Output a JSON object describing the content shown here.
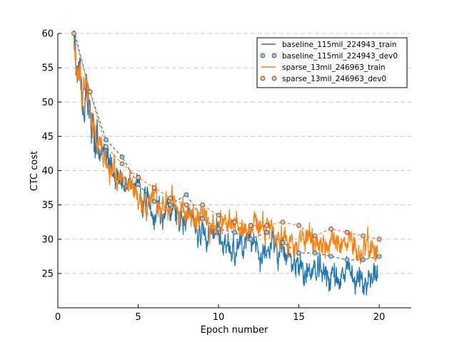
{
  "chart_data": {
    "type": "line",
    "title": "",
    "xlabel": "Epoch number",
    "ylabel": "CTC cost",
    "xlim": [
      0,
      22
    ],
    "ylim": [
      20,
      60
    ],
    "xticks": [
      0,
      5,
      10,
      15,
      20
    ],
    "yticks": [
      25,
      30,
      35,
      40,
      45,
      50,
      55,
      60
    ],
    "grid": "horizontal dashed",
    "legend_position": "top-right",
    "colors": {
      "blue": "#1f77b4",
      "orange": "#ff7f0e",
      "grid": "#c8c8c8"
    },
    "series": [
      {
        "name": "baseline_115mil_224943_train",
        "style": "line",
        "color": "#1f77b4",
        "x": [
          1.0,
          1.2,
          1.5,
          1.8,
          2.0,
          2.3,
          2.6,
          3.0,
          3.3,
          3.6,
          4.0,
          4.5,
          5.0,
          5.5,
          6.0,
          6.5,
          7.0,
          7.5,
          8.0,
          8.5,
          9.0,
          9.5,
          10.0,
          10.5,
          11.0,
          11.5,
          12.0,
          12.5,
          13.0,
          13.5,
          14.0,
          14.5,
          15.0,
          15.5,
          16.0,
          16.5,
          17.0,
          17.5,
          18.0,
          18.5,
          19.0,
          19.5,
          19.9
        ],
        "values": [
          60.0,
          54.0,
          52.0,
          49.5,
          47.0,
          44.5,
          43.0,
          42.0,
          40.0,
          39.5,
          39.0,
          37.5,
          36.5,
          35.5,
          35.0,
          34.0,
          34.0,
          33.5,
          32.5,
          32.0,
          31.5,
          31.0,
          30.0,
          29.5,
          29.0,
          28.5,
          28.5,
          28.5,
          29.0,
          28.0,
          27.5,
          27.0,
          26.5,
          25.5,
          25.0,
          25.0,
          25.0,
          24.5,
          24.5,
          24.0,
          24.0,
          24.0,
          25.5
        ]
      },
      {
        "name": "baseline_115mil_224943_dev0",
        "style": "dashed-markers",
        "color": "#1f77b4",
        "x": [
          1,
          2,
          3,
          4,
          5,
          6,
          7,
          8,
          9,
          10,
          11,
          12,
          13,
          14,
          15,
          16,
          17,
          18,
          19,
          20
        ],
        "values": [
          60.5,
          51.5,
          44.5,
          42.0,
          38.0,
          35.5,
          35.0,
          36.5,
          33.0,
          31.5,
          31.0,
          30.0,
          31.0,
          29.5,
          28.0,
          28.0,
          27.5,
          27.0,
          27.0,
          27.5
        ]
      },
      {
        "name": "sparse_13mil_246963_train",
        "style": "line",
        "color": "#ff7f0e",
        "x": [
          1.0,
          1.2,
          1.5,
          1.8,
          2.0,
          2.3,
          2.6,
          3.0,
          3.3,
          3.6,
          4.0,
          4.5,
          5.0,
          5.5,
          6.0,
          6.5,
          7.0,
          7.5,
          8.0,
          8.5,
          9.0,
          9.5,
          10.0,
          10.5,
          11.0,
          11.5,
          12.0,
          12.5,
          13.0,
          13.5,
          14.0,
          14.5,
          15.0,
          15.5,
          16.0,
          16.5,
          17.0,
          17.5,
          18.0,
          18.5,
          19.0,
          19.5,
          19.9
        ],
        "values": [
          60.0,
          55.0,
          52.0,
          50.0,
          48.5,
          45.0,
          43.5,
          41.5,
          40.0,
          39.5,
          39.0,
          38.0,
          37.0,
          36.0,
          36.0,
          35.0,
          35.0,
          34.0,
          33.5,
          33.0,
          33.0,
          32.5,
          32.5,
          32.0,
          31.5,
          31.5,
          31.5,
          31.0,
          31.5,
          31.0,
          30.5,
          30.0,
          30.0,
          29.5,
          29.5,
          29.5,
          29.5,
          29.0,
          29.0,
          28.5,
          28.0,
          28.0,
          30.0
        ]
      },
      {
        "name": "sparse_13mil_246963_dev0",
        "style": "dashed-markers",
        "color": "#ff7f0e",
        "x": [
          1,
          2,
          3,
          4,
          5,
          6,
          7,
          8,
          9,
          10,
          11,
          12,
          13,
          14,
          15,
          16,
          17,
          18,
          19,
          20
        ],
        "values": [
          60.0,
          51.5,
          43.5,
          41.0,
          39.0,
          37.5,
          36.0,
          35.0,
          35.0,
          33.5,
          32.5,
          32.0,
          32.0,
          32.5,
          32.0,
          30.5,
          31.5,
          31.0,
          30.5,
          30.0
        ]
      }
    ]
  }
}
